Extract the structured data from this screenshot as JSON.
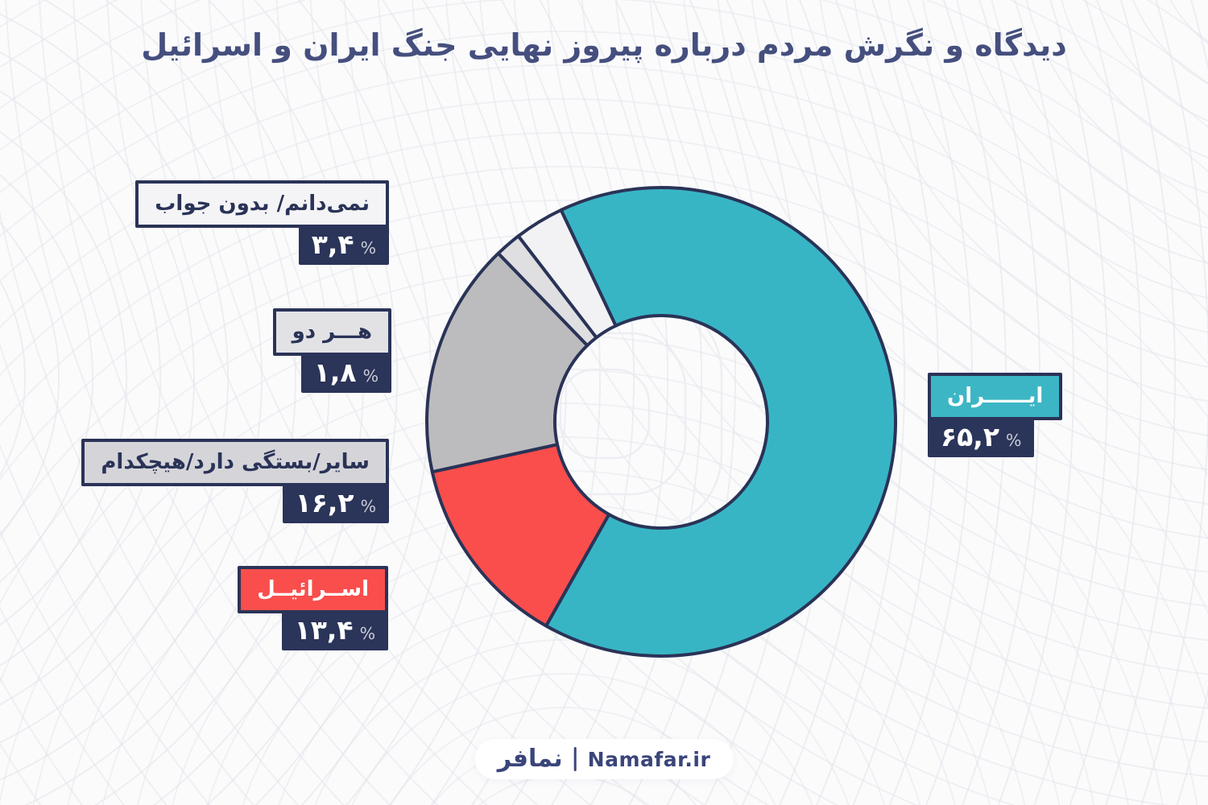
{
  "title": "دیدگاه و نگرش مردم درباره پیروز نهایی جنگ ایران و اسرائیل",
  "unit": "%",
  "colors": {
    "navy": "#2a3357",
    "title_navy": "#454f7e",
    "teal": "#38b5c5",
    "red": "#f94e4c",
    "gray": "#bcbcbe",
    "light_gray": "#dfdfe1",
    "off_white": "#f2f2f4",
    "background": "#fbfbfc"
  },
  "chart_data": {
    "type": "pie",
    "subtype": "donut",
    "title": "دیدگاه و نگرش مردم درباره پیروز نهایی جنگ ایران و اسرائیل",
    "direction": "clockwise",
    "start_angle_deg": -25.3,
    "inner_radius_ratio": 0.45,
    "legend_position": "callout-boxes",
    "grid": false,
    "unit": "%",
    "series": [
      {
        "label_fa": "ایــــــران",
        "value": 65.2,
        "value_fa": "۶۵,۲",
        "color": "#38b5c5"
      },
      {
        "label_fa": "اســرائیــل",
        "value": 13.4,
        "value_fa": "۱۳,۴",
        "color": "#f94e4c"
      },
      {
        "label_fa": "سایر/بستگی دارد/هیچکدام",
        "value": 16.2,
        "value_fa": "۱۶,۲",
        "color": "#bcbcbe"
      },
      {
        "label_fa": "هـــر دو",
        "value": 1.8,
        "value_fa": "۱,۸",
        "color": "#dfdfe1"
      },
      {
        "label_fa": "نمی‌دانم/ بدون جواب",
        "value": 3.4,
        "value_fa": "۳,۴",
        "color": "#f2f2f4"
      }
    ]
  },
  "footer": {
    "brand_fa": "نمافر",
    "divider": "|",
    "brand_site": "Namafar.ir"
  }
}
